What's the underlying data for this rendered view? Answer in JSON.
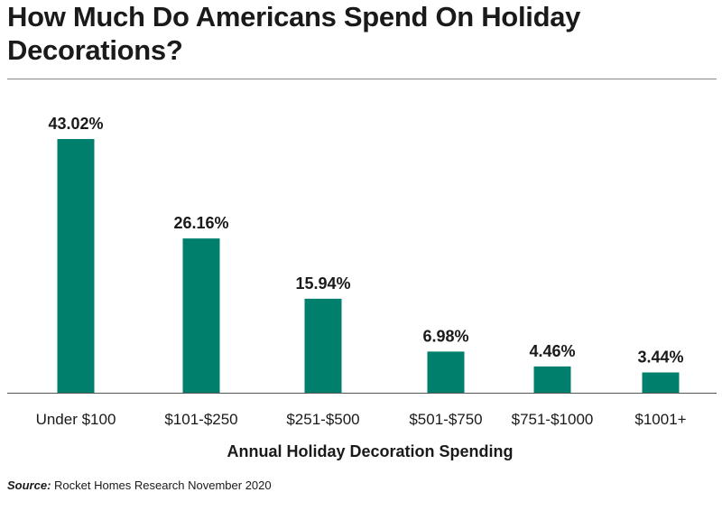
{
  "chart_data": {
    "type": "bar",
    "title": "How Much Do Americans Spend On Holiday Decorations?",
    "xlabel": "Annual Holiday Decoration Spending",
    "ylabel": "",
    "categories": [
      "Under $100",
      "$101-$250",
      "$251-$500",
      "$501-$750",
      "$751-$1000",
      "$1001+"
    ],
    "values": [
      43.02,
      26.16,
      15.94,
      6.98,
      4.46,
      3.44
    ],
    "value_labels": [
      "43.02%",
      "26.16%",
      "15.94%",
      "6.98%",
      "4.46%",
      "3.44%"
    ],
    "ylim": [
      0,
      43.02
    ],
    "grid": false,
    "bar_color": "#007f6d"
  },
  "source": {
    "key": "Source:",
    "text": " Rocket Homes Research November 2020"
  }
}
